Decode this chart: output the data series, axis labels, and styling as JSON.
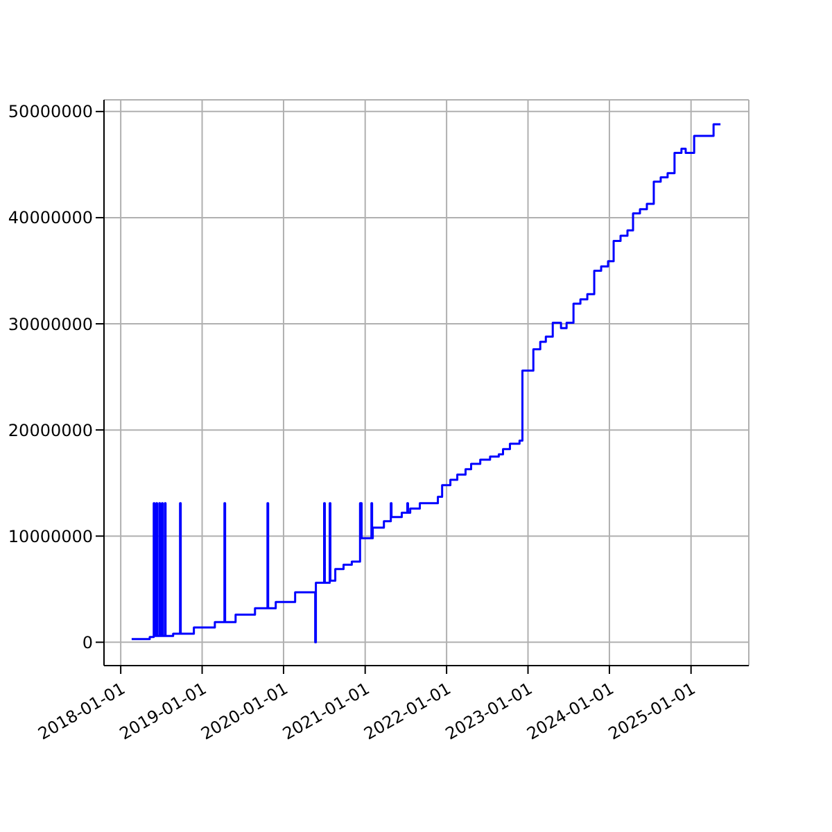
{
  "chart_data": {
    "type": "step",
    "xlim": [
      "2017-10-18",
      "2025-09-17"
    ],
    "ylim": [
      -2200000,
      51100000
    ],
    "xticks": [
      "2018-01-01",
      "2019-01-01",
      "2020-01-01",
      "2021-01-01",
      "2022-01-01",
      "2023-01-01",
      "2024-01-01",
      "2025-01-01"
    ],
    "yticks": [
      0,
      10000000,
      20000000,
      30000000,
      40000000,
      50000000
    ],
    "grid": true,
    "series": [
      {
        "color": "#0000ff",
        "x": [
          "2018-02-19",
          "2018-05-11",
          "2018-05-29",
          "2018-06-01",
          "2018-06-10",
          "2018-06-13",
          "2018-06-23",
          "2018-06-26",
          "2018-07-05",
          "2018-07-08",
          "2018-07-18",
          "2018-07-21",
          "2018-08-24",
          "2018-09-24",
          "2018-09-27",
          "2018-11-25",
          "2019-02-27",
          "2019-04-11",
          "2019-04-14",
          "2019-05-31",
          "2019-08-26",
          "2019-10-21",
          "2019-10-24",
          "2019-11-27",
          "2020-02-22",
          "2020-05-22",
          "2020-05-25",
          "2020-07-01",
          "2020-07-04",
          "2020-07-26",
          "2020-07-29",
          "2020-08-20",
          "2020-09-26",
          "2020-11-02",
          "2020-12-09",
          "2020-12-16",
          "2021-01-29",
          "2021-02-01",
          "2021-02-04",
          "2021-03-26",
          "2021-04-26",
          "2021-04-29",
          "2021-06-14",
          "2021-07-09",
          "2021-07-12",
          "2021-07-22",
          "2021-09-03",
          "2021-11-23",
          "2021-12-12",
          "2022-01-18",
          "2022-02-18",
          "2022-03-27",
          "2022-04-21",
          "2022-06-01",
          "2022-07-15",
          "2022-08-23",
          "2022-09-11",
          "2022-10-12",
          "2022-11-24",
          "2022-12-07",
          "2023-01-25",
          "2023-02-25",
          "2023-03-22",
          "2023-04-22",
          "2023-05-29",
          "2023-06-23",
          "2023-07-24",
          "2023-08-24",
          "2023-09-24",
          "2023-10-25",
          "2023-11-25",
          "2023-12-26",
          "2024-01-20",
          "2024-02-20",
          "2024-03-22",
          "2024-04-16",
          "2024-05-17",
          "2024-06-17",
          "2024-07-18",
          "2024-08-18",
          "2024-09-18",
          "2024-10-19",
          "2024-11-19",
          "2024-12-08",
          "2025-01-15",
          "2025-04-12",
          "2025-05-13"
        ],
        "values": [
          300000,
          500000,
          13100000,
          600000,
          13100000,
          600000,
          13100000,
          600000,
          13100000,
          600000,
          13100000,
          600000,
          800000,
          13100000,
          800000,
          1400000,
          1900000,
          13100000,
          1900000,
          2600000,
          3200000,
          13100000,
          3200000,
          3800000,
          4700000,
          0,
          5600000,
          13100000,
          5600000,
          13100000,
          5800000,
          6900000,
          7300000,
          7600000,
          13100000,
          9800000,
          13100000,
          9800000,
          10800000,
          11400000,
          13100000,
          11800000,
          12200000,
          13100000,
          12200000,
          12600000,
          13100000,
          13700000,
          14800000,
          15300000,
          15800000,
          16300000,
          16800000,
          17200000,
          17500000,
          17700000,
          18200000,
          18700000,
          19000000,
          25600000,
          27600000,
          28300000,
          28800000,
          30100000,
          29600000,
          30100000,
          31900000,
          32300000,
          32800000,
          35000000,
          35400000,
          35900000,
          37800000,
          38300000,
          38800000,
          40400000,
          40800000,
          41300000,
          43400000,
          43800000,
          44200000,
          46100000,
          46500000,
          46100000,
          47700000,
          48800000,
          48800000
        ]
      }
    ]
  }
}
